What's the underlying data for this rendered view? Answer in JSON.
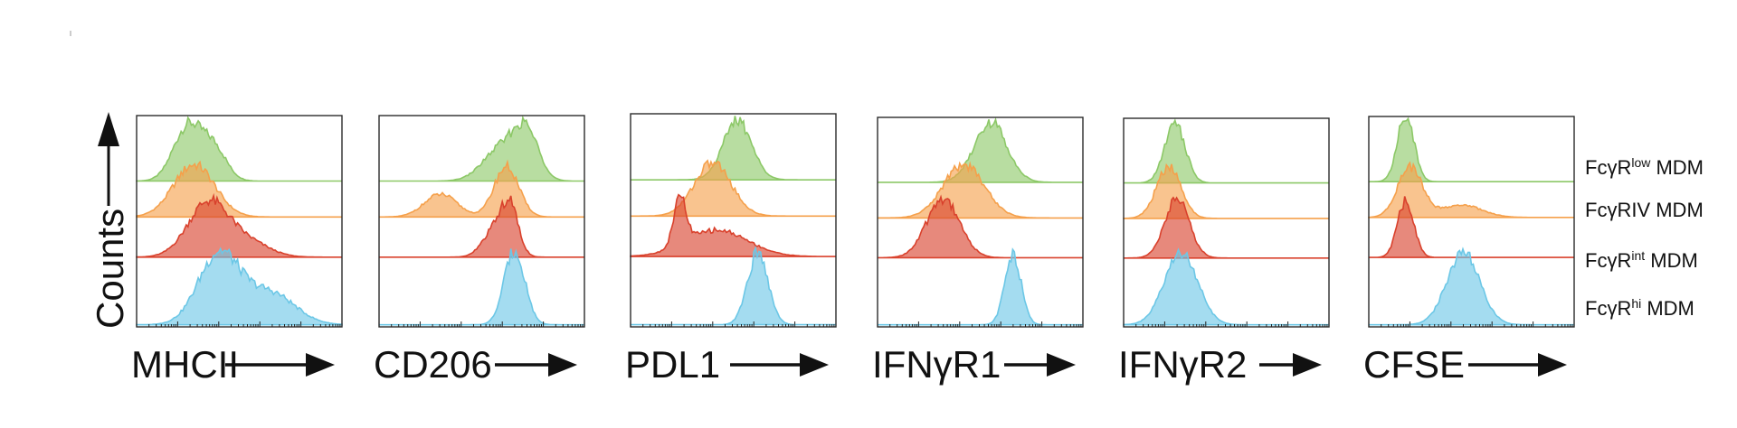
{
  "chart_data": {
    "type": "histogram",
    "y_axis_label": "Counts",
    "legend": [
      {
        "base": "FcγR",
        "sup": "low",
        "suffix": " MDM",
        "color": "#8cc867"
      },
      {
        "base": "FcγRIV MDM",
        "sup": "",
        "suffix": "",
        "color": "#f5a04b"
      },
      {
        "base": "FcγR",
        "sup": "int",
        "suffix": " MDM",
        "color": "#d9412c"
      },
      {
        "base": "FcγR",
        "sup": "hi",
        "suffix": " MDM",
        "color": "#6cc7e6"
      }
    ],
    "x_scale": "log (unlabeled decades)",
    "panels": [
      {
        "label": "MHCII",
        "series": [
          {
            "peaks": [
              {
                "c": 0.25,
                "w": 0.07,
                "h": 1.0
              },
              {
                "c": 0.38,
                "w": 0.06,
                "h": 0.55
              }
            ]
          },
          {
            "peaks": [
              {
                "c": 0.28,
                "w": 0.1,
                "h": 1.0
              }
            ]
          },
          {
            "peaks": [
              {
                "c": 0.35,
                "w": 0.1,
                "h": 1.0
              },
              {
                "c": 0.55,
                "w": 0.1,
                "h": 0.25
              }
            ]
          },
          {
            "peaks": [
              {
                "c": 0.4,
                "w": 0.1,
                "h": 1.0
              },
              {
                "c": 0.65,
                "w": 0.12,
                "h": 0.45
              }
            ]
          }
        ]
      },
      {
        "label": "CD206",
        "series": [
          {
            "peaks": [
              {
                "c": 0.6,
                "w": 0.09,
                "h": 0.8
              },
              {
                "c": 0.72,
                "w": 0.06,
                "h": 1.0
              }
            ]
          },
          {
            "peaks": [
              {
                "c": 0.3,
                "w": 0.08,
                "h": 0.45
              },
              {
                "c": 0.62,
                "w": 0.06,
                "h": 1.0
              }
            ]
          },
          {
            "peaks": [
              {
                "c": 0.57,
                "w": 0.06,
                "h": 0.7
              },
              {
                "c": 0.64,
                "w": 0.04,
                "h": 1.0
              }
            ]
          },
          {
            "peaks": [
              {
                "c": 0.66,
                "w": 0.05,
                "h": 1.0
              }
            ]
          }
        ]
      },
      {
        "label": "PDL1",
        "series": [
          {
            "peaks": [
              {
                "c": 0.52,
                "w": 0.07,
                "h": 1.0
              }
            ]
          },
          {
            "peaks": [
              {
                "c": 0.4,
                "w": 0.09,
                "h": 1.0
              }
            ]
          },
          {
            "peaks": [
              {
                "c": 0.24,
                "w": 0.03,
                "h": 1.0
              },
              {
                "c": 0.42,
                "w": 0.15,
                "h": 0.55
              }
            ]
          },
          {
            "peaks": [
              {
                "c": 0.62,
                "w": 0.05,
                "h": 1.0
              }
            ]
          }
        ]
      },
      {
        "label": "IFNγR1",
        "series": [
          {
            "peaks": [
              {
                "c": 0.55,
                "w": 0.08,
                "h": 1.0
              }
            ]
          },
          {
            "peaks": [
              {
                "c": 0.42,
                "w": 0.1,
                "h": 1.0
              }
            ]
          },
          {
            "peaks": [
              {
                "c": 0.32,
                "w": 0.08,
                "h": 1.0
              }
            ]
          },
          {
            "peaks": [
              {
                "c": 0.66,
                "w": 0.04,
                "h": 1.0
              }
            ]
          }
        ]
      },
      {
        "label": "IFNγR2",
        "series": [
          {
            "peaks": [
              {
                "c": 0.25,
                "w": 0.05,
                "h": 1.0
              }
            ]
          },
          {
            "peaks": [
              {
                "c": 0.22,
                "w": 0.06,
                "h": 1.0
              }
            ]
          },
          {
            "peaks": [
              {
                "c": 0.26,
                "w": 0.06,
                "h": 1.0
              }
            ]
          },
          {
            "peaks": [
              {
                "c": 0.28,
                "w": 0.08,
                "h": 1.0
              }
            ]
          }
        ]
      },
      {
        "label": "CFSE",
        "series": [
          {
            "peaks": [
              {
                "c": 0.18,
                "w": 0.04,
                "h": 1.0
              }
            ]
          },
          {
            "peaks": [
              {
                "c": 0.2,
                "w": 0.06,
                "h": 1.0
              },
              {
                "c": 0.45,
                "w": 0.1,
                "h": 0.25
              }
            ]
          },
          {
            "peaks": [
              {
                "c": 0.18,
                "w": 0.04,
                "h": 1.0
              }
            ]
          },
          {
            "peaks": [
              {
                "c": 0.46,
                "w": 0.08,
                "h": 1.0
              }
            ]
          }
        ]
      }
    ]
  }
}
